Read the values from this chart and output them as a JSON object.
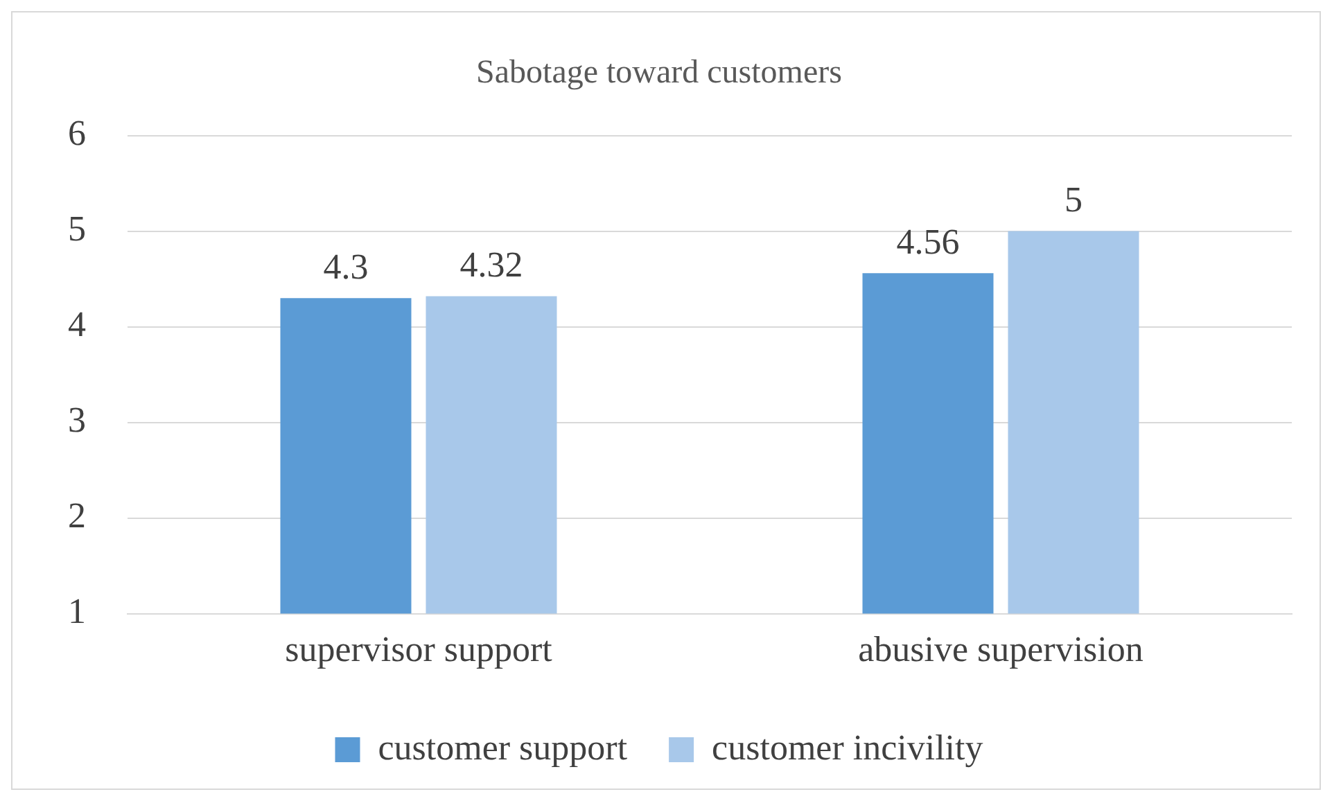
{
  "chart_data": {
    "type": "bar",
    "title": "Sabotage toward customers",
    "categories": [
      "supervisor support",
      "abusive supervision"
    ],
    "series": [
      {
        "name": "customer support",
        "color": "#5b9bd5",
        "values": [
          4.3,
          4.56
        ]
      },
      {
        "name": "customer incivility",
        "color": "#a8c8ea",
        "values": [
          4.32,
          5
        ]
      }
    ],
    "ylim": [
      1,
      6
    ],
    "yticks": [
      1,
      2,
      3,
      4,
      5,
      6
    ],
    "grid": "y",
    "legend": "bottom",
    "data_labels": true
  }
}
